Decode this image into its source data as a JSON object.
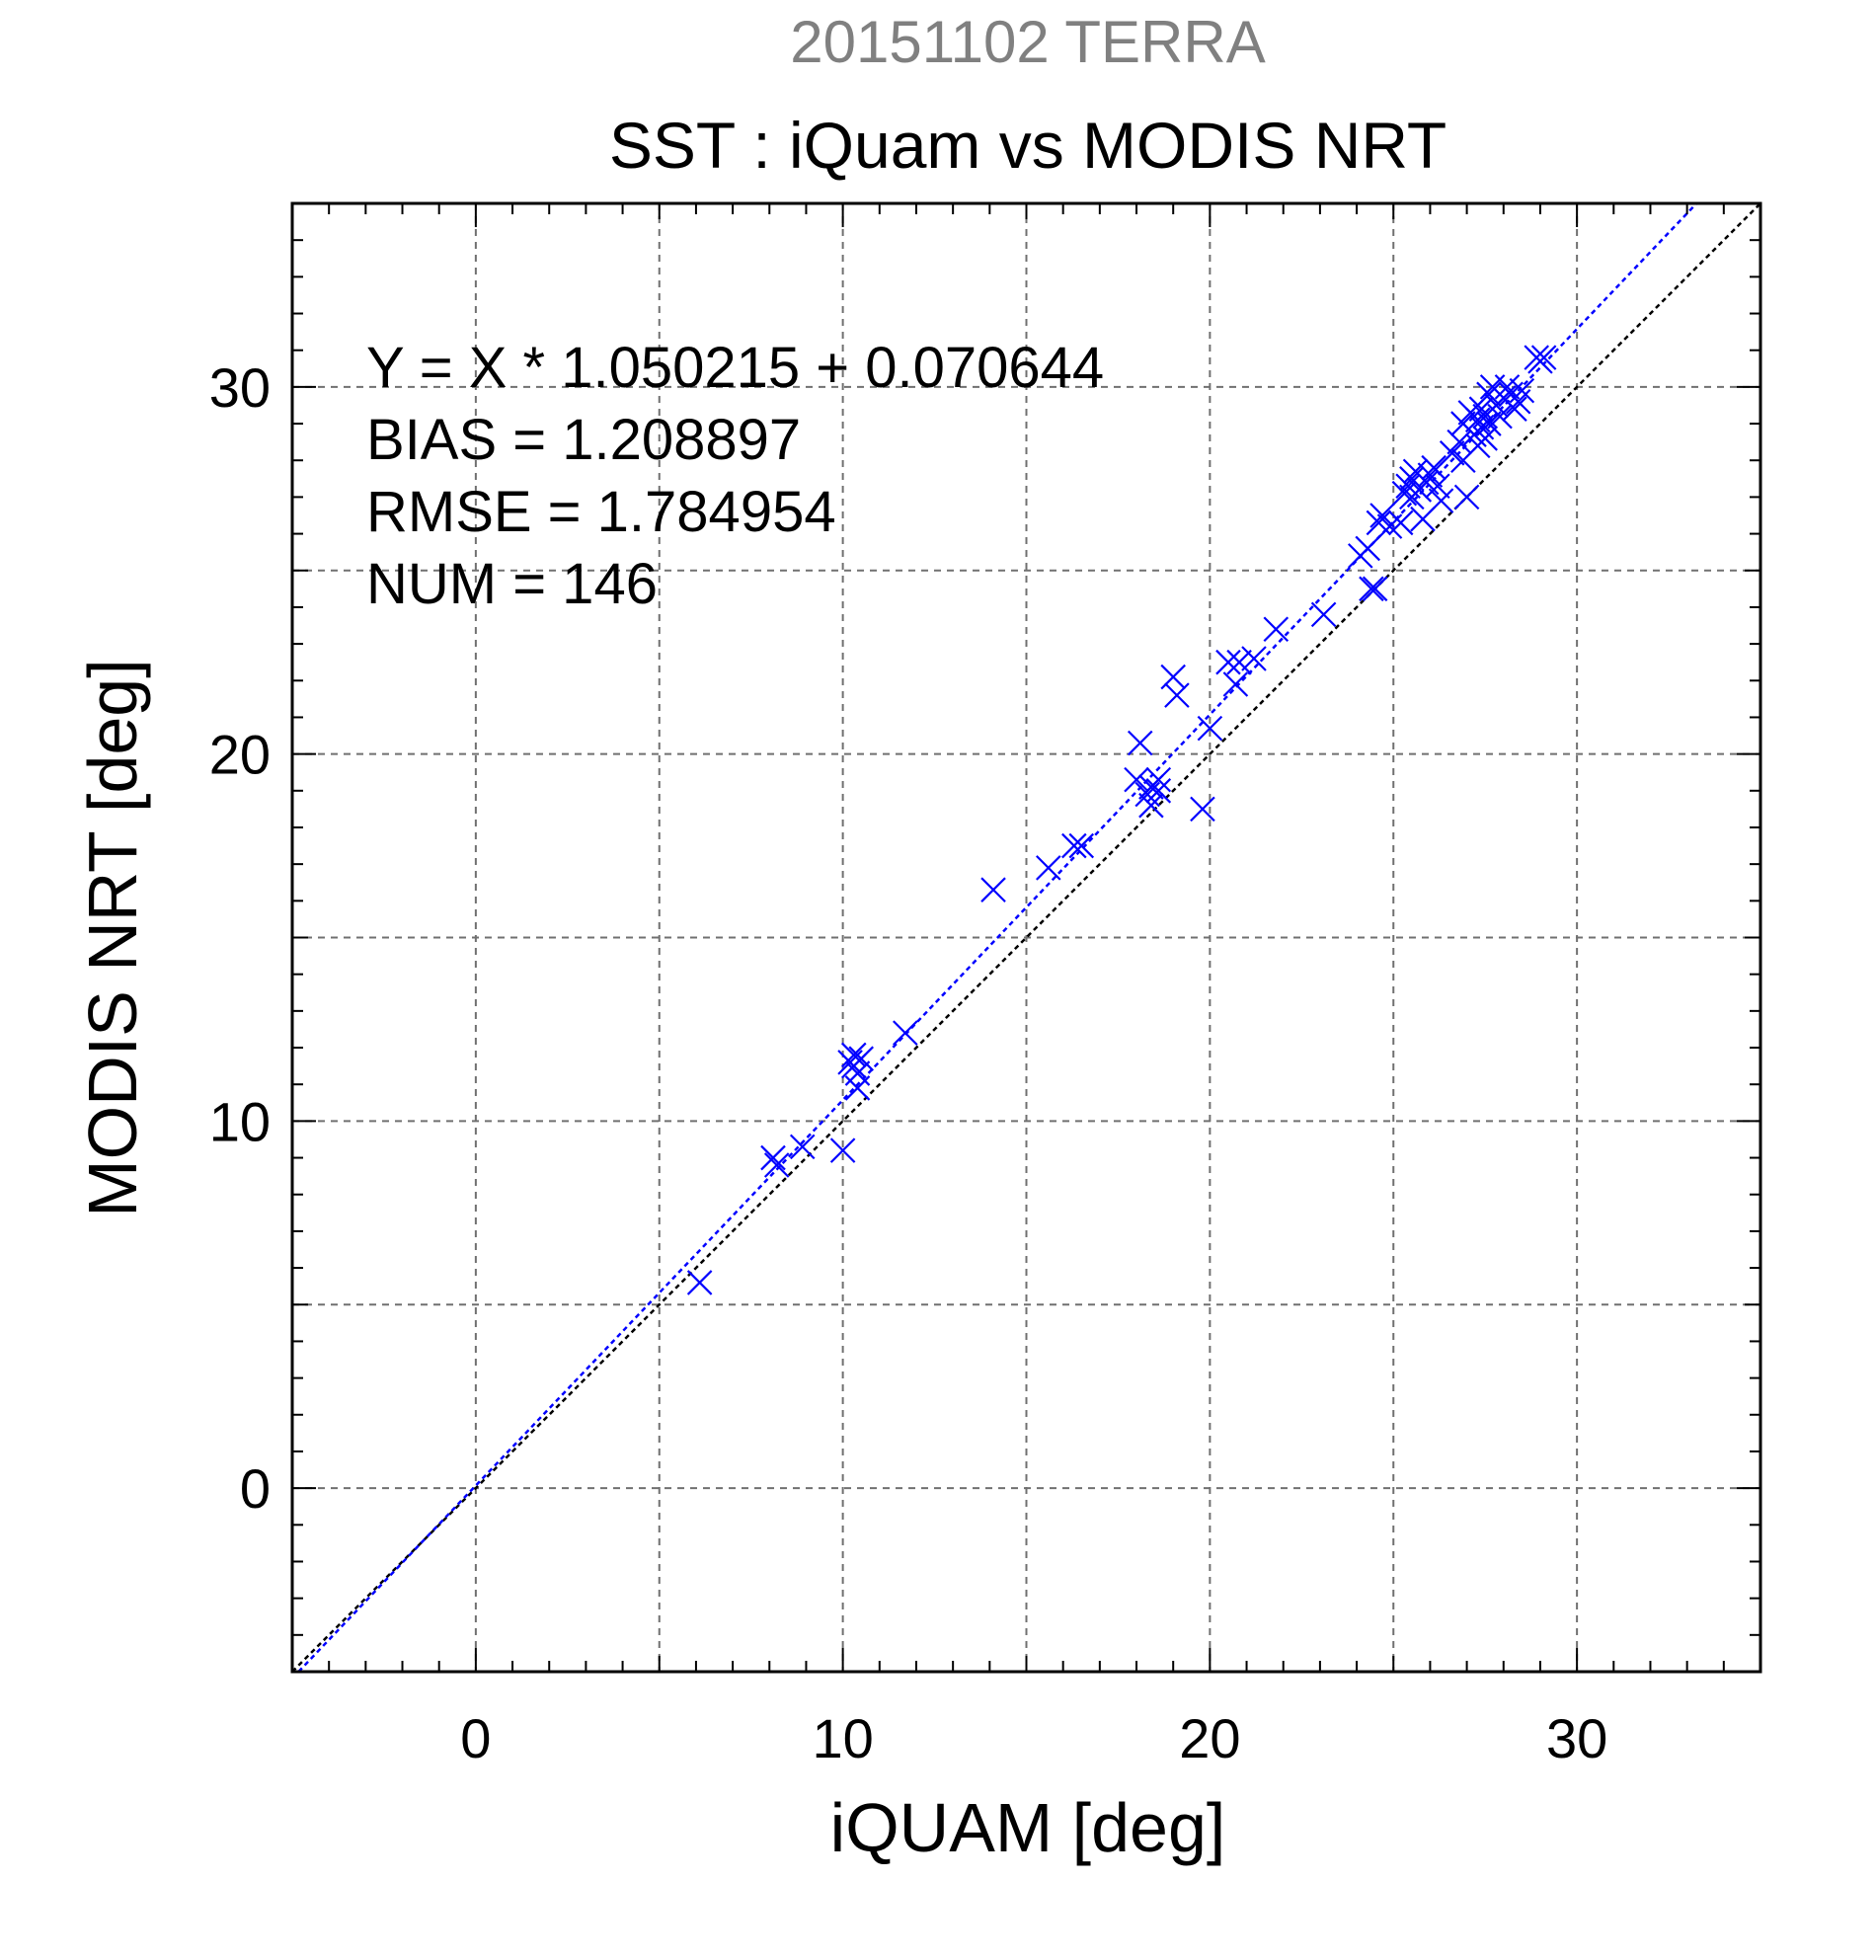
{
  "chart_data": {
    "type": "scatter",
    "title": "SST : iQuam vs MODIS NRT",
    "subtitle": "20151102 TERRA",
    "xlabel": "iQUAM [deg]",
    "ylabel": "MODIS NRT [deg]",
    "xlim": [
      -5,
      35
    ],
    "ylim": [
      -5,
      35
    ],
    "xticks": [
      0,
      10,
      20,
      30
    ],
    "yticks": [
      0,
      10,
      20,
      30
    ],
    "grid": true,
    "colors": {
      "points": "#0000ff",
      "fit_line": "#0000ff",
      "identity_line": "#000000",
      "subtitle": "#808080",
      "text": "#000000"
    },
    "annotations": [
      "Y = X * 1.050215 + 0.070644",
      "BIAS = 1.208897",
      "RMSE = 1.784954",
      "NUM = 146"
    ],
    "fit_line": {
      "slope": 1.050215,
      "intercept": 0.070644
    },
    "identity_line": {
      "slope": 1,
      "intercept": 0
    },
    "points": [
      [
        6.1,
        5.6
      ],
      [
        8.1,
        9.0
      ],
      [
        8.2,
        8.8
      ],
      [
        8.9,
        9.3
      ],
      [
        10.0,
        9.2
      ],
      [
        10.2,
        11.6
      ],
      [
        10.3,
        11.8
      ],
      [
        10.3,
        11.5
      ],
      [
        10.4,
        11.3
      ],
      [
        10.4,
        10.9
      ],
      [
        10.5,
        11.7
      ],
      [
        11.7,
        12.4
      ],
      [
        14.1,
        16.3
      ],
      [
        15.6,
        16.9
      ],
      [
        16.3,
        17.5
      ],
      [
        16.5,
        17.5
      ],
      [
        18.0,
        19.3
      ],
      [
        18.1,
        20.3
      ],
      [
        18.3,
        18.9
      ],
      [
        18.4,
        18.6
      ],
      [
        18.4,
        19.1
      ],
      [
        18.6,
        19.3
      ],
      [
        18.6,
        19.0
      ],
      [
        19.0,
        22.1
      ],
      [
        19.1,
        21.6
      ],
      [
        19.8,
        18.5
      ],
      [
        20.0,
        20.7
      ],
      [
        20.5,
        22.5
      ],
      [
        20.7,
        21.9
      ],
      [
        20.8,
        22.5
      ],
      [
        21.2,
        22.6
      ],
      [
        21.8,
        23.4
      ],
      [
        23.1,
        23.8
      ],
      [
        24.1,
        25.4
      ],
      [
        24.3,
        25.6
      ],
      [
        24.4,
        24.5
      ],
      [
        24.5,
        24.5
      ],
      [
        24.6,
        26.3
      ],
      [
        24.7,
        26.5
      ],
      [
        24.9,
        26.2
      ],
      [
        25.2,
        26.3
      ],
      [
        25.3,
        27.1
      ],
      [
        25.4,
        27.3
      ],
      [
        25.5,
        27.5
      ],
      [
        25.5,
        27.0
      ],
      [
        25.6,
        27.7
      ],
      [
        25.7,
        27.2
      ],
      [
        25.8,
        26.4
      ],
      [
        25.9,
        27.4
      ],
      [
        26.0,
        27.6
      ],
      [
        26.1,
        27.8
      ],
      [
        26.2,
        27.3
      ],
      [
        26.3,
        26.9
      ],
      [
        26.6,
        28.2
      ],
      [
        26.8,
        28.5
      ],
      [
        26.9,
        28.0
      ],
      [
        26.9,
        29.0
      ],
      [
        27.0,
        27.0
      ],
      [
        27.1,
        29.3
      ],
      [
        27.2,
        28.7
      ],
      [
        27.3,
        29.1
      ],
      [
        27.3,
        28.4
      ],
      [
        27.4,
        29.4
      ],
      [
        27.4,
        28.9
      ],
      [
        27.5,
        28.6
      ],
      [
        27.5,
        29.2
      ],
      [
        27.6,
        29.8
      ],
      [
        27.6,
        29.0
      ],
      [
        27.7,
        30.0
      ],
      [
        27.8,
        29.5
      ],
      [
        27.9,
        29.2
      ],
      [
        28.0,
        29.7
      ],
      [
        28.1,
        30.0
      ],
      [
        28.2,
        29.8
      ],
      [
        28.3,
        29.4
      ],
      [
        28.4,
        29.6
      ],
      [
        28.5,
        29.9
      ],
      [
        28.9,
        30.8
      ],
      [
        29.0,
        30.7
      ],
      [
        29.1,
        30.8
      ]
    ]
  }
}
